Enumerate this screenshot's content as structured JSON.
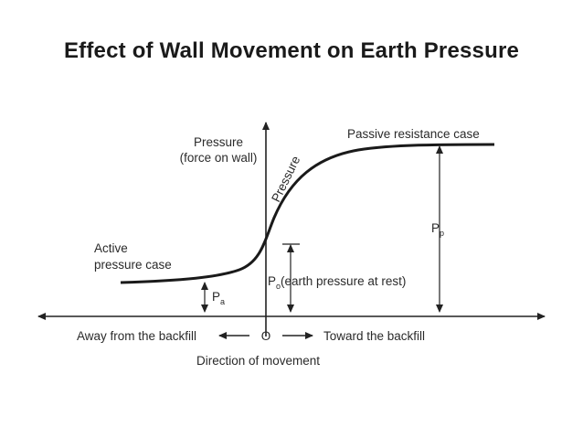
{
  "title": "Effect of Wall Movement on Earth Pressure",
  "y_axis_label": [
    "Pressure",
    "(force on wall)"
  ],
  "curve_label": "Pressure",
  "passive_label": "Passive resistance case",
  "active_label": [
    "Active",
    "pressure case"
  ],
  "pa": {
    "main": "P",
    "sub": "a"
  },
  "pp": {
    "main": "P",
    "sub": "p"
  },
  "po": {
    "main": "P",
    "sub": "o",
    "rest": "(earth pressure at rest)"
  },
  "away_label": "Away from the backfill",
  "origin_label": "O",
  "toward_label": "Toward the backfill",
  "direction_label": "Direction of movement"
}
